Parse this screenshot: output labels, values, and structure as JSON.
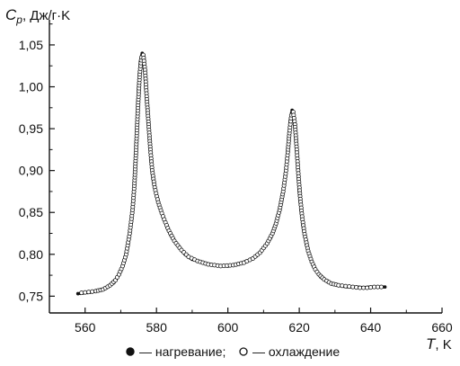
{
  "chart_data": {
    "type": "scatter",
    "title": "",
    "ylabel_symbol": "C",
    "ylabel_subscript": "p",
    "ylabel_unit": ", Дж/г·K",
    "xlabel_symbol": "T",
    "xlabel_unit": ", K",
    "xlim": [
      550,
      660
    ],
    "ylim": [
      0.73,
      1.08
    ],
    "xticks": [
      560,
      580,
      600,
      620,
      640,
      660
    ],
    "xtick_labels": [
      "560",
      "580",
      "600",
      "620",
      "640",
      "660"
    ],
    "yticks": [
      0.75,
      0.8,
      0.85,
      0.9,
      0.95,
      1.0,
      1.05
    ],
    "ytick_labels": [
      "0,75",
      "0,80",
      "0,85",
      "0,90",
      "0,95",
      "1,00",
      "1,05"
    ],
    "grid": false,
    "legend_position": "bottom",
    "series": [
      {
        "name": "нагревание",
        "marker": "filled-circle",
        "x": [
          558,
          560,
          562,
          564,
          566,
          568,
          569,
          570,
          571,
          572,
          573,
          573.5,
          574,
          574.5,
          575,
          575.5,
          576,
          576.5,
          577,
          577.5,
          578,
          578.5,
          579,
          580,
          581,
          582,
          583,
          584,
          586,
          588,
          590,
          593,
          596,
          600,
          603,
          606,
          608,
          610,
          612,
          613,
          614,
          615,
          616,
          616.5,
          617,
          617.5,
          618,
          618.5,
          619,
          619.5,
          620,
          620.5,
          621,
          622,
          623,
          624,
          625,
          626,
          628,
          630,
          632,
          634,
          636,
          638,
          640,
          642,
          644
        ],
        "y": [
          0.753,
          0.754,
          0.755,
          0.757,
          0.76,
          0.766,
          0.772,
          0.78,
          0.792,
          0.81,
          0.84,
          0.865,
          0.9,
          0.95,
          1.0,
          1.03,
          1.04,
          1.035,
          1.0,
          0.97,
          0.94,
          0.91,
          0.89,
          0.87,
          0.855,
          0.843,
          0.832,
          0.823,
          0.81,
          0.8,
          0.794,
          0.79,
          0.787,
          0.786,
          0.788,
          0.793,
          0.798,
          0.807,
          0.82,
          0.83,
          0.845,
          0.862,
          0.89,
          0.91,
          0.935,
          0.96,
          0.972,
          0.965,
          0.94,
          0.91,
          0.875,
          0.853,
          0.835,
          0.812,
          0.797,
          0.786,
          0.779,
          0.773,
          0.767,
          0.764,
          0.762,
          0.761,
          0.761,
          0.76,
          0.761,
          0.761,
          0.761
        ]
      },
      {
        "name": "охлаждение",
        "marker": "open-circle",
        "x": [
          559,
          561,
          563,
          565,
          567,
          568.5,
          569.5,
          570.5,
          571.5,
          572.5,
          573.3,
          573.8,
          574.3,
          574.8,
          575.3,
          575.8,
          576.3,
          576.8,
          577.3,
          577.8,
          578.3,
          578.8,
          579.5,
          580.5,
          581.5,
          582.5,
          583.5,
          585,
          587,
          589,
          591.5,
          594.5,
          598,
          601.5,
          604.5,
          607,
          609,
          611,
          612.5,
          613.5,
          614.5,
          615.5,
          616.3,
          616.8,
          617.3,
          617.8,
          618.3,
          618.8,
          619.3,
          619.8,
          620.3,
          620.8,
          621.5,
          622.5,
          623.5,
          624.5,
          625.5,
          627,
          629,
          631,
          633,
          635,
          637,
          639,
          641,
          643
        ],
        "y": [
          0.754,
          0.755,
          0.756,
          0.758,
          0.763,
          0.769,
          0.776,
          0.786,
          0.8,
          0.825,
          0.853,
          0.882,
          0.925,
          0.975,
          1.015,
          1.035,
          1.038,
          1.02,
          0.985,
          0.955,
          0.925,
          0.9,
          0.88,
          0.862,
          0.849,
          0.838,
          0.828,
          0.816,
          0.805,
          0.797,
          0.792,
          0.788,
          0.786,
          0.787,
          0.79,
          0.795,
          0.802,
          0.813,
          0.825,
          0.837,
          0.853,
          0.875,
          0.9,
          0.922,
          0.948,
          0.966,
          0.97,
          0.955,
          0.925,
          0.893,
          0.866,
          0.845,
          0.824,
          0.804,
          0.791,
          0.782,
          0.776,
          0.77,
          0.765,
          0.763,
          0.762,
          0.761,
          0.76,
          0.76,
          0.761,
          0.761
        ]
      }
    ],
    "legend": {
      "heating_label": "— нагревание;",
      "cooling_label": "— охлаждение"
    }
  }
}
